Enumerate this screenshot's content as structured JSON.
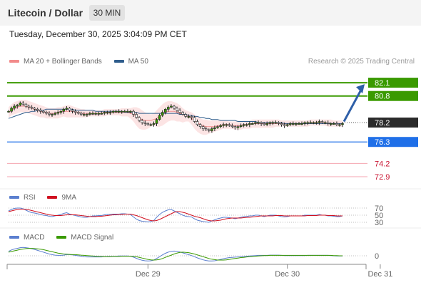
{
  "header": {
    "title": "Litecoin / Dollar",
    "interval": "30 MIN"
  },
  "datetime": "Tuesday, December 30, 2025 3:04:09 PM CET",
  "credit": "Research © 2025 Trading Central",
  "colors": {
    "bollinger": "#f28b8b",
    "ma50": "#2f5d8c",
    "green": "#3a9a00",
    "blue": "#1f6fe8",
    "pivot": "#2b2b2b",
    "support": "#e66b7b",
    "rsi": "#5b7fcf",
    "rsi_ma": "#d01020",
    "macd": "#5b7fcf",
    "macd_signal": "#3a9a00"
  },
  "chart_data": [
    {
      "type": "candlestick",
      "legend": [
        {
          "label": "MA 20 + Bollinger Bands",
          "color": "#f28b8b"
        },
        {
          "label": "MA 50",
          "color": "#2f5d8c"
        }
      ],
      "ylim": [
        72.2,
        83.5
      ],
      "levels": [
        {
          "value": 82.1,
          "label": "82.1",
          "kind": "resistance"
        },
        {
          "value": 80.8,
          "label": "80.8",
          "kind": "resistance"
        },
        {
          "value": 78.2,
          "label": "78.2",
          "kind": "pivot"
        },
        {
          "value": 76.3,
          "label": "76.3",
          "kind": "support-blue"
        },
        {
          "value": 74.2,
          "label": "74.2",
          "kind": "support"
        },
        {
          "value": 72.9,
          "label": "72.9",
          "kind": "support"
        }
      ],
      "x_ticks": [
        {
          "index": 48,
          "label": "Dec 29"
        },
        {
          "index": 96,
          "label": "Dec 30"
        },
        {
          "index": 128,
          "label": "Dec 31"
        }
      ],
      "projection": {
        "from": 78.3,
        "to": 82.1
      },
      "closes": [
        79.3,
        79.6,
        79.8,
        79.9,
        80.1,
        80.0,
        79.8,
        79.7,
        79.6,
        79.5,
        79.4,
        79.3,
        79.2,
        79.1,
        79.0,
        79.0,
        79.1,
        79.2,
        79.3,
        79.5,
        79.6,
        79.4,
        79.3,
        79.2,
        79.1,
        79.0,
        79.0,
        79.0,
        79.1,
        79.1,
        79.1,
        79.1,
        79.1,
        79.2,
        79.2,
        79.2,
        79.3,
        79.3,
        79.3,
        79.3,
        79.3,
        79.3,
        79.3,
        79.0,
        78.7,
        78.4,
        78.2,
        78.1,
        78.0,
        78.0,
        78.1,
        78.5,
        78.9,
        79.2,
        79.5,
        79.7,
        79.8,
        79.6,
        79.4,
        79.2,
        79.0,
        78.8,
        78.8,
        78.7,
        78.3,
        78.0,
        77.8,
        77.6,
        77.5,
        77.4,
        77.6,
        77.7,
        77.8,
        77.9,
        78.0,
        78.0,
        77.9,
        77.8,
        77.7,
        77.8,
        77.9,
        78.0,
        78.0,
        78.1,
        78.1,
        78.2,
        78.2,
        78.1,
        78.0,
        78.1,
        78.2,
        78.2,
        78.2,
        78.1,
        78.0,
        77.9,
        78.0,
        78.1,
        78.1,
        78.1,
        78.1,
        78.1,
        78.2,
        78.2,
        78.2,
        78.2,
        78.2,
        78.3,
        78.2,
        78.2,
        78.1,
        78.1,
        78.1,
        78.0,
        78.0,
        78.1
      ],
      "ma20": [
        79.2,
        79.4,
        79.6,
        79.7,
        79.8,
        79.8,
        79.8,
        79.7,
        79.6,
        79.5,
        79.4,
        79.3,
        79.2,
        79.2,
        79.1,
        79.1,
        79.1,
        79.2,
        79.2,
        79.3,
        79.3,
        79.3,
        79.3,
        79.2,
        79.2,
        79.1,
        79.1,
        79.1,
        79.1,
        79.1,
        79.1,
        79.1,
        79.1,
        79.2,
        79.2,
        79.2,
        79.2,
        79.2,
        79.2,
        79.2,
        79.2,
        79.2,
        79.1,
        79.0,
        78.8,
        78.6,
        78.5,
        78.4,
        78.4,
        78.4,
        78.5,
        78.6,
        78.8,
        79.0,
        79.2,
        79.3,
        79.3,
        79.3,
        79.2,
        79.1,
        79.0,
        78.9,
        78.8,
        78.6,
        78.4,
        78.2,
        78.0,
        77.9,
        77.8,
        77.8,
        77.8,
        77.8,
        77.9,
        77.9,
        78.0,
        78.0,
        78.0,
        77.9,
        77.9,
        77.9,
        77.9,
        78.0,
        78.0,
        78.0,
        78.1,
        78.1,
        78.1,
        78.1,
        78.1,
        78.1,
        78.1,
        78.1,
        78.1,
        78.1,
        78.1,
        78.1,
        78.1,
        78.1,
        78.1,
        78.1,
        78.1,
        78.1,
        78.1,
        78.1,
        78.2,
        78.2,
        78.2,
        78.2,
        78.2,
        78.2,
        78.1,
        78.1,
        78.1,
        78.1,
        78.1,
        78.1
      ],
      "bb_upper": [
        79.7,
        80.0,
        80.2,
        80.3,
        80.4,
        80.4,
        80.4,
        80.3,
        80.2,
        80.1,
        80.0,
        79.9,
        79.8,
        79.7,
        79.6,
        79.6,
        79.6,
        79.7,
        79.7,
        79.8,
        79.9,
        79.9,
        79.8,
        79.7,
        79.6,
        79.5,
        79.5,
        79.4,
        79.4,
        79.4,
        79.4,
        79.4,
        79.4,
        79.5,
        79.5,
        79.5,
        79.5,
        79.5,
        79.5,
        79.6,
        79.6,
        79.6,
        79.6,
        79.7,
        79.7,
        79.6,
        79.4,
        79.2,
        79.1,
        79.0,
        79.1,
        79.4,
        79.7,
        80.0,
        80.2,
        80.3,
        80.3,
        80.2,
        80.1,
        79.9,
        79.6,
        79.4,
        79.3,
        79.2,
        79.0,
        78.8,
        78.6,
        78.5,
        78.5,
        78.4,
        78.4,
        78.4,
        78.4,
        78.4,
        78.4,
        78.4,
        78.3,
        78.3,
        78.3,
        78.3,
        78.3,
        78.4,
        78.4,
        78.4,
        78.5,
        78.5,
        78.5,
        78.5,
        78.5,
        78.5,
        78.5,
        78.5,
        78.5,
        78.5,
        78.4,
        78.4,
        78.4,
        78.4,
        78.4,
        78.4,
        78.4,
        78.4,
        78.4,
        78.4,
        78.5,
        78.5,
        78.5,
        78.5,
        78.5,
        78.5,
        78.5,
        78.5,
        78.4,
        78.4,
        78.4,
        78.4
      ],
      "bb_lower": [
        78.7,
        78.9,
        79.0,
        79.1,
        79.2,
        79.2,
        79.2,
        79.1,
        79.0,
        78.9,
        78.8,
        78.7,
        78.7,
        78.6,
        78.6,
        78.6,
        78.6,
        78.6,
        78.7,
        78.8,
        78.7,
        78.7,
        78.7,
        78.7,
        78.7,
        78.7,
        78.7,
        78.7,
        78.8,
        78.8,
        78.8,
        78.8,
        78.8,
        78.8,
        78.9,
        78.9,
        78.9,
        78.9,
        78.9,
        78.8,
        78.8,
        78.8,
        78.6,
        78.3,
        77.9,
        77.6,
        77.5,
        77.5,
        77.6,
        77.8,
        77.9,
        77.8,
        77.8,
        77.9,
        78.1,
        78.3,
        78.4,
        78.4,
        78.3,
        78.3,
        78.2,
        78.3,
        78.3,
        78.0,
        77.6,
        77.3,
        77.1,
        77.0,
        77.0,
        77.1,
        77.2,
        77.3,
        77.4,
        77.5,
        77.6,
        77.6,
        77.6,
        77.6,
        77.5,
        77.5,
        77.5,
        77.6,
        77.6,
        77.6,
        77.7,
        77.7,
        77.7,
        77.7,
        77.7,
        77.7,
        77.7,
        77.7,
        77.8,
        77.8,
        77.8,
        77.8,
        77.8,
        77.8,
        77.8,
        77.8,
        77.8,
        77.8,
        77.8,
        77.8,
        77.9,
        77.9,
        77.9,
        77.9,
        77.9,
        77.9,
        77.8,
        77.8,
        77.8,
        77.8,
        77.8,
        77.8
      ],
      "ma50": [
        78.6,
        78.7,
        78.8,
        78.9,
        79.0,
        79.1,
        79.2,
        79.2,
        79.3,
        79.3,
        79.4,
        79.4,
        79.4,
        79.5,
        79.5,
        79.5,
        79.5,
        79.5,
        79.5,
        79.5,
        79.5,
        79.5,
        79.5,
        79.4,
        79.4,
        79.4,
        79.4,
        79.4,
        79.4,
        79.4,
        79.3,
        79.3,
        79.3,
        79.3,
        79.3,
        79.3,
        79.3,
        79.3,
        79.3,
        79.3,
        79.2,
        79.2,
        79.2,
        79.2,
        79.2,
        79.1,
        79.1,
        79.1,
        79.1,
        79.1,
        79.1,
        79.1,
        79.1,
        79.1,
        79.1,
        79.1,
        79.1,
        79.1,
        79.1,
        79.0,
        79.0,
        79.0,
        78.9,
        78.9,
        78.8,
        78.8,
        78.7,
        78.7,
        78.6,
        78.6,
        78.5,
        78.5,
        78.5,
        78.4,
        78.4,
        78.4,
        78.4,
        78.4,
        78.4,
        78.3,
        78.3,
        78.3,
        78.3,
        78.3,
        78.3,
        78.3,
        78.2,
        78.2,
        78.2,
        78.2,
        78.2,
        78.2,
        78.2,
        78.2,
        78.2,
        78.1,
        78.1,
        78.1,
        78.1,
        78.1,
        78.1,
        78.1,
        78.1,
        78.1,
        78.1,
        78.1,
        78.1,
        78.1,
        78.1,
        78.1,
        78.1,
        78.1,
        78.1,
        78.1,
        78.1,
        78.1
      ]
    },
    {
      "type": "line",
      "legend": [
        {
          "label": "RSI",
          "color": "#5b7fcf"
        },
        {
          "label": "9MA",
          "color": "#d01020"
        }
      ],
      "ylim": [
        20,
        80
      ],
      "y_ticks": [
        {
          "value": 70,
          "label": "70"
        },
        {
          "value": 50,
          "label": "50"
        },
        {
          "value": 30,
          "label": "30"
        }
      ],
      "rsi": [
        62,
        66,
        69,
        70,
        70,
        68,
        64,
        60,
        57,
        56,
        54,
        52,
        50,
        49,
        47,
        46,
        48,
        50,
        52,
        55,
        57,
        53,
        51,
        49,
        47,
        45,
        44,
        44,
        46,
        48,
        48,
        49,
        49,
        51,
        52,
        52,
        53,
        53,
        53,
        54,
        54,
        53,
        52,
        45,
        39,
        35,
        33,
        32,
        31,
        32,
        35,
        44,
        52,
        58,
        62,
        65,
        66,
        62,
        58,
        54,
        50,
        47,
        46,
        45,
        40,
        36,
        34,
        32,
        31,
        30,
        34,
        37,
        40,
        42,
        44,
        44,
        43,
        42,
        40,
        42,
        44,
        46,
        46,
        48,
        48,
        50,
        50,
        48,
        46,
        48,
        50,
        50,
        50,
        48,
        46,
        45,
        46,
        48,
        48,
        48,
        48,
        48,
        50,
        50,
        50,
        50,
        50,
        52,
        50,
        50,
        48,
        48,
        47,
        46,
        46,
        48
      ],
      "ma9": [
        60,
        62,
        64,
        66,
        67,
        67,
        66,
        65,
        63,
        61,
        59,
        57,
        55,
        53,
        51,
        50,
        49,
        49,
        49,
        50,
        51,
        51,
        51,
        51,
        50,
        49,
        48,
        47,
        46,
        46,
        46,
        47,
        47,
        48,
        49,
        50,
        51,
        51,
        52,
        52,
        53,
        53,
        53,
        51,
        49,
        46,
        43,
        40,
        37,
        35,
        34,
        35,
        38,
        42,
        46,
        50,
        54,
        58,
        60,
        60,
        58,
        56,
        53,
        50,
        47,
        45,
        43,
        40,
        37,
        35,
        34,
        34,
        35,
        36,
        38,
        40,
        41,
        42,
        42,
        42,
        42,
        43,
        44,
        44,
        45,
        46,
        47,
        48,
        48,
        48,
        48,
        48,
        49,
        49,
        49,
        48,
        48,
        48,
        48,
        48,
        48,
        48,
        48,
        49,
        49,
        49,
        49,
        50,
        50,
        50,
        49,
        49,
        49,
        48,
        48,
        48
      ]
    },
    {
      "type": "line",
      "legend": [
        {
          "label": "MACD",
          "color": "#5b7fcf"
        },
        {
          "label": "MACD Signal",
          "color": "#3a9a00"
        }
      ],
      "ylim": [
        -0.6,
        0.6
      ],
      "y_ticks": [
        {
          "value": 0,
          "label": "0"
        }
      ],
      "macd": [
        0.2,
        0.26,
        0.3,
        0.33,
        0.36,
        0.37,
        0.36,
        0.34,
        0.31,
        0.28,
        0.24,
        0.2,
        0.16,
        0.12,
        0.08,
        0.05,
        0.03,
        0.02,
        0.02,
        0.03,
        0.05,
        0.05,
        0.04,
        0.02,
        0.0,
        -0.02,
        -0.04,
        -0.05,
        -0.05,
        -0.05,
        -0.05,
        -0.05,
        -0.05,
        -0.04,
        -0.03,
        -0.03,
        -0.02,
        -0.02,
        -0.01,
        -0.01,
        -0.01,
        -0.01,
        -0.02,
        -0.06,
        -0.11,
        -0.16,
        -0.2,
        -0.22,
        -0.23,
        -0.22,
        -0.19,
        -0.12,
        -0.04,
        0.04,
        0.11,
        0.16,
        0.2,
        0.21,
        0.2,
        0.17,
        0.13,
        0.09,
        0.05,
        0.01,
        -0.04,
        -0.09,
        -0.14,
        -0.18,
        -0.21,
        -0.23,
        -0.23,
        -0.22,
        -0.19,
        -0.16,
        -0.13,
        -0.1,
        -0.08,
        -0.07,
        -0.06,
        -0.05,
        -0.04,
        -0.03,
        -0.02,
        -0.01,
        0.0,
        0.01,
        0.02,
        0.02,
        0.02,
        0.02,
        0.03,
        0.03,
        0.03,
        0.03,
        0.02,
        0.01,
        0.01,
        0.01,
        0.01,
        0.01,
        0.01,
        0.01,
        0.01,
        0.02,
        0.02,
        0.02,
        0.02,
        0.02,
        0.02,
        0.02,
        0.02,
        0.01,
        0.0,
        -0.01,
        -0.01,
        -0.01
      ],
      "signal": [
        0.16,
        0.19,
        0.22,
        0.25,
        0.28,
        0.3,
        0.32,
        0.33,
        0.33,
        0.32,
        0.31,
        0.29,
        0.27,
        0.24,
        0.21,
        0.18,
        0.15,
        0.12,
        0.1,
        0.08,
        0.07,
        0.06,
        0.05,
        0.05,
        0.04,
        0.03,
        0.02,
        0.01,
        0.0,
        -0.01,
        -0.02,
        -0.03,
        -0.03,
        -0.04,
        -0.04,
        -0.04,
        -0.03,
        -0.03,
        -0.03,
        -0.02,
        -0.02,
        -0.02,
        -0.02,
        -0.03,
        -0.04,
        -0.07,
        -0.1,
        -0.13,
        -0.16,
        -0.18,
        -0.19,
        -0.18,
        -0.16,
        -0.12,
        -0.07,
        -0.02,
        0.03,
        0.08,
        0.12,
        0.15,
        0.16,
        0.15,
        0.14,
        0.11,
        0.08,
        0.04,
        0.0,
        -0.04,
        -0.08,
        -0.12,
        -0.15,
        -0.17,
        -0.19,
        -0.19,
        -0.19,
        -0.18,
        -0.16,
        -0.14,
        -0.12,
        -0.1,
        -0.08,
        -0.07,
        -0.05,
        -0.04,
        -0.03,
        -0.02,
        -0.01,
        0.0,
        0.01,
        0.01,
        0.02,
        0.02,
        0.02,
        0.02,
        0.02,
        0.02,
        0.02,
        0.02,
        0.02,
        0.02,
        0.02,
        0.02,
        0.02,
        0.02,
        0.02,
        0.02,
        0.02,
        0.02,
        0.02,
        0.02,
        0.02,
        0.02,
        0.01,
        0.01,
        0.0,
        0.0
      ]
    }
  ]
}
